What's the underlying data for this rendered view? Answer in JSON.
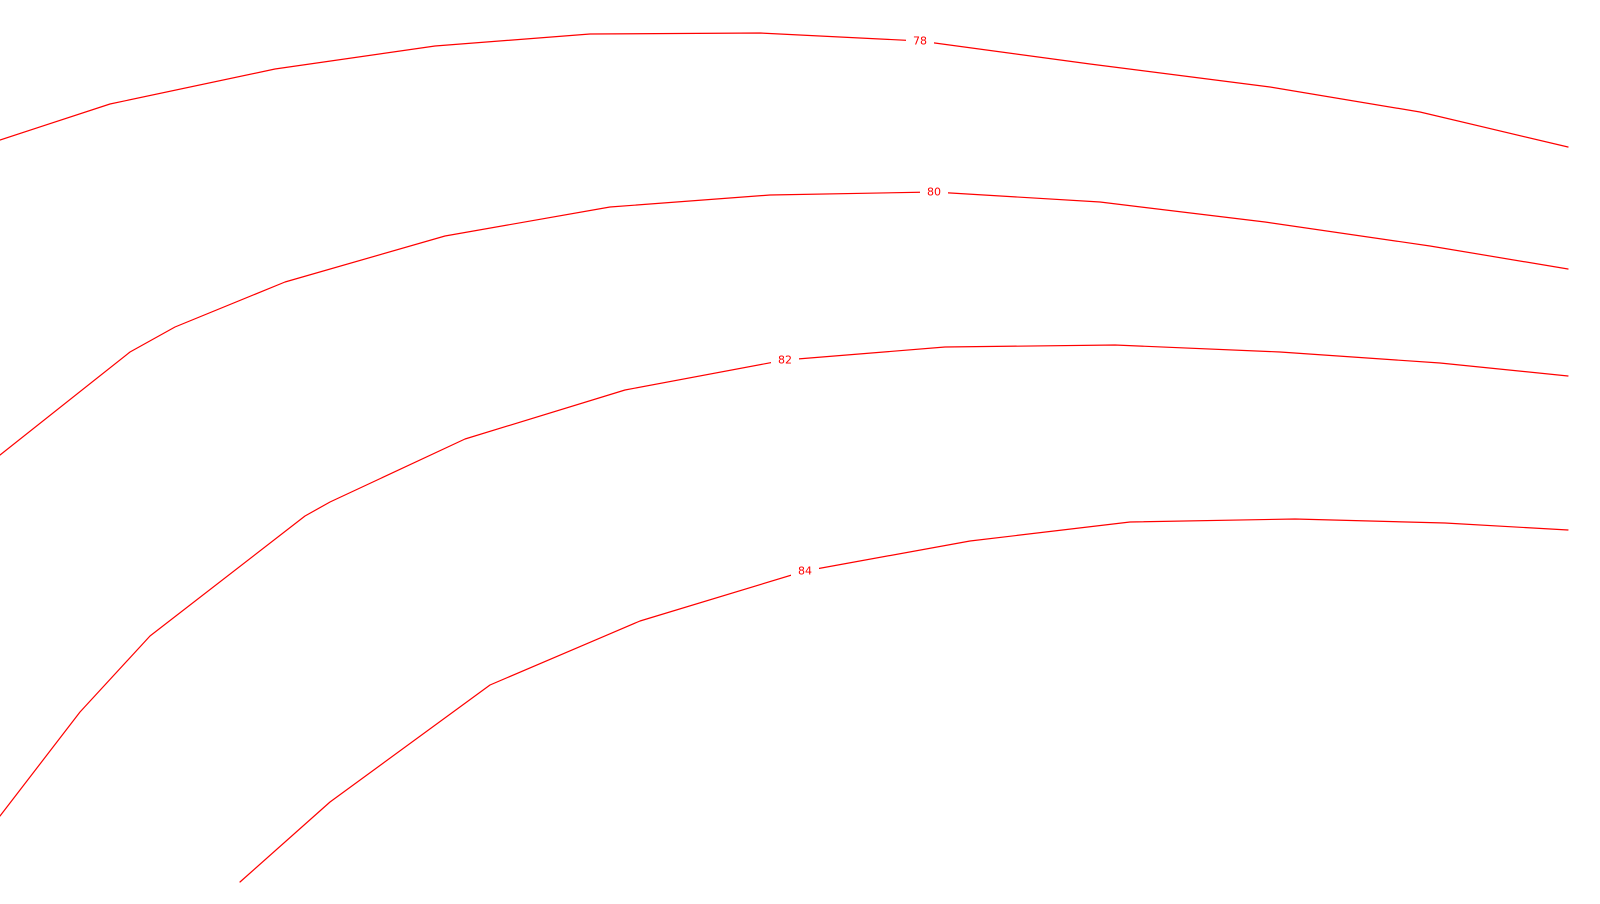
{
  "map": {
    "line_color": "#ff0000",
    "label_color": "#ff0000",
    "background_color": "#ffffff",
    "contours": [
      {
        "label": "78"
      },
      {
        "label": "80"
      },
      {
        "label": "82"
      },
      {
        "label": "84"
      }
    ]
  }
}
